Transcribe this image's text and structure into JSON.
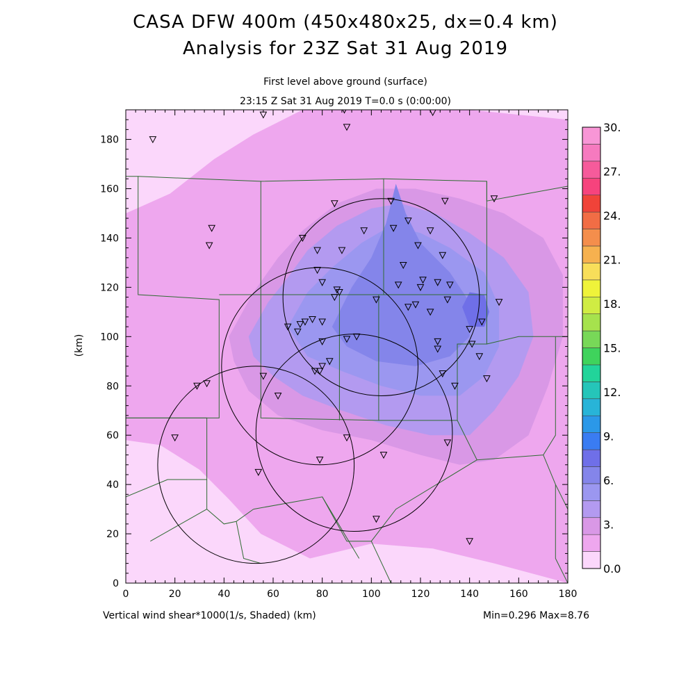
{
  "title_line1": "CASA DFW 400m (450x480x25, dx=0.4 km)",
  "title_line2": "Analysis for 23Z Sat 31 Aug 2019",
  "subtitle_line1": "First level above ground (surface)",
  "subtitle_line2": "23:15 Z Sat 31 Aug 2019   T=0.0 s (0:00:00)",
  "footer_left": "Vertical wind shear*1000(1/s, Shaded)  (km)",
  "footer_right": "Min=0.296 Max=8.76",
  "colorbar": {
    "colors": [
      "#fbd7fb",
      "#eea7ee",
      "#d998e6",
      "#b39af0",
      "#9b97f0",
      "#8485ea",
      "#6f6fe8",
      "#3a7cf2",
      "#2b98e8",
      "#28b4d8",
      "#25c5b9",
      "#22d49a",
      "#3fd35c",
      "#78d858",
      "#a6e24d",
      "#d0ec43",
      "#eff33a",
      "#f8de5a",
      "#f6b14f",
      "#f48e4c",
      "#f16d45",
      "#f04339",
      "#f6437d",
      "#f65b9b",
      "#f67abf",
      "#f896d6"
    ],
    "labels": [
      "0.0",
      "3.",
      "6.",
      "9.",
      "12.",
      "15.",
      "18.",
      "21.",
      "24.",
      "27.",
      "30."
    ]
  },
  "chart_data": {
    "type": "heatmap",
    "field": "Vertical wind shear*1000 (1/s)",
    "xlabel": "(km)",
    "ylabel": "(km)",
    "xlim": [
      0,
      180
    ],
    "ylim": [
      0,
      192
    ],
    "xticks": [
      "0",
      "20",
      "40",
      "60",
      "80",
      "100",
      "120",
      "140",
      "160",
      "180"
    ],
    "yticks": [
      "0",
      "20",
      "40",
      "60",
      "80",
      "100",
      "120",
      "140",
      "160",
      "180"
    ],
    "min": 0.296,
    "max": 8.76,
    "radar_circles": [
      {
        "cx": 104,
        "cy": 116,
        "r": 40
      },
      {
        "cx": 79,
        "cy": 88,
        "r": 40
      },
      {
        "cx": 93,
        "cy": 61,
        "r": 40
      },
      {
        "cx": 53,
        "cy": 48,
        "r": 40
      }
    ],
    "stations": [
      [
        11,
        180
      ],
      [
        56,
        190
      ],
      [
        89,
        192
      ],
      [
        90,
        185
      ],
      [
        125,
        191
      ],
      [
        35,
        144
      ],
      [
        34,
        137
      ],
      [
        85,
        154
      ],
      [
        130,
        155
      ],
      [
        150,
        156
      ],
      [
        72,
        140
      ],
      [
        78,
        135
      ],
      [
        88,
        135
      ],
      [
        97,
        143
      ],
      [
        109,
        144
      ],
      [
        115,
        147
      ],
      [
        124,
        143
      ],
      [
        108,
        155
      ],
      [
        119,
        137
      ],
      [
        129,
        133
      ],
      [
        113,
        129
      ],
      [
        78,
        127
      ],
      [
        80,
        122
      ],
      [
        86,
        119
      ],
      [
        87,
        118
      ],
      [
        85,
        116
      ],
      [
        102,
        115
      ],
      [
        111,
        121
      ],
      [
        120,
        120
      ],
      [
        121,
        123
      ],
      [
        127,
        122
      ],
      [
        132,
        121
      ],
      [
        131,
        115
      ],
      [
        115,
        112
      ],
      [
        118,
        113
      ],
      [
        124,
        110
      ],
      [
        140,
        103
      ],
      [
        141,
        97
      ],
      [
        145,
        106
      ],
      [
        152,
        114
      ],
      [
        66,
        104
      ],
      [
        70,
        102
      ],
      [
        71,
        105
      ],
      [
        73,
        106
      ],
      [
        76,
        107
      ],
      [
        80,
        106
      ],
      [
        80,
        98
      ],
      [
        90,
        99
      ],
      [
        94,
        100
      ],
      [
        127,
        98
      ],
      [
        127,
        95
      ],
      [
        144,
        92
      ],
      [
        147,
        83
      ],
      [
        79,
        86
      ],
      [
        77,
        86
      ],
      [
        80,
        88
      ],
      [
        83,
        90
      ],
      [
        129,
        85
      ],
      [
        134,
        80
      ],
      [
        29,
        80
      ],
      [
        33,
        81
      ],
      [
        56,
        84
      ],
      [
        62,
        76
      ],
      [
        20,
        59
      ],
      [
        90,
        59
      ],
      [
        131,
        57
      ],
      [
        105,
        52
      ],
      [
        79,
        50
      ],
      [
        54,
        45
      ],
      [
        102,
        26
      ],
      [
        140,
        17
      ]
    ],
    "regions": [
      {
        "level": 1,
        "pts": [
          [
            0,
            0
          ],
          [
            180,
            0
          ],
          [
            180,
            192
          ],
          [
            0,
            192
          ]
        ]
      },
      {
        "level": 2,
        "pts": [
          [
            0,
            150
          ],
          [
            18,
            158
          ],
          [
            36,
            172
          ],
          [
            52,
            182
          ],
          [
            72,
            192
          ],
          [
            140,
            192
          ],
          [
            180,
            188
          ],
          [
            180,
            0
          ],
          [
            150,
            8
          ],
          [
            125,
            14
          ],
          [
            100,
            16
          ],
          [
            75,
            10
          ],
          [
            55,
            20
          ],
          [
            42,
            34
          ],
          [
            30,
            46
          ],
          [
            14,
            56
          ],
          [
            0,
            58
          ]
        ]
      },
      {
        "level": 3,
        "pts": [
          [
            42,
            100
          ],
          [
            52,
            118
          ],
          [
            62,
            132
          ],
          [
            72,
            143
          ],
          [
            86,
            154
          ],
          [
            102,
            160
          ],
          [
            118,
            160
          ],
          [
            136,
            156
          ],
          [
            154,
            150
          ],
          [
            170,
            140
          ],
          [
            178,
            125
          ],
          [
            178,
            100
          ],
          [
            172,
            80
          ],
          [
            164,
            60
          ],
          [
            150,
            50
          ],
          [
            136,
            48
          ],
          [
            120,
            52
          ],
          [
            100,
            58
          ],
          [
            80,
            62
          ],
          [
            62,
            68
          ],
          [
            50,
            78
          ],
          [
            44,
            90
          ]
        ]
      },
      {
        "level": 4,
        "pts": [
          [
            50,
            100
          ],
          [
            58,
            114
          ],
          [
            66,
            124
          ],
          [
            74,
            135
          ],
          [
            86,
            145
          ],
          [
            100,
            152
          ],
          [
            112,
            154
          ],
          [
            126,
            150
          ],
          [
            140,
            142
          ],
          [
            154,
            132
          ],
          [
            164,
            118
          ],
          [
            166,
            100
          ],
          [
            160,
            84
          ],
          [
            150,
            70
          ],
          [
            140,
            60
          ],
          [
            124,
            60
          ],
          [
            106,
            64
          ],
          [
            88,
            70
          ],
          [
            72,
            76
          ],
          [
            60,
            84
          ],
          [
            52,
            92
          ]
        ]
      },
      {
        "level": 5,
        "pts": [
          [
            66,
            104
          ],
          [
            74,
            118
          ],
          [
            84,
            128
          ],
          [
            96,
            138
          ],
          [
            108,
            145
          ],
          [
            120,
            142
          ],
          [
            132,
            136
          ],
          [
            146,
            126
          ],
          [
            152,
            112
          ],
          [
            152,
            96
          ],
          [
            146,
            84
          ],
          [
            136,
            76
          ],
          [
            120,
            76
          ],
          [
            104,
            80
          ],
          [
            88,
            86
          ],
          [
            74,
            92
          ]
        ]
      },
      {
        "level": 6,
        "pts": [
          [
            84,
            104
          ],
          [
            92,
            120
          ],
          [
            100,
            132
          ],
          [
            106,
            146
          ],
          [
            110,
            162
          ],
          [
            114,
            150
          ],
          [
            120,
            138
          ],
          [
            132,
            126
          ],
          [
            140,
            114
          ],
          [
            140,
            100
          ],
          [
            132,
            92
          ],
          [
            118,
            88
          ],
          [
            102,
            90
          ],
          [
            90,
            96
          ]
        ]
      },
      {
        "level": 7,
        "pts": [
          [
            140,
            104
          ],
          [
            137,
            112
          ],
          [
            140,
            118
          ],
          [
            146,
            117
          ],
          [
            148,
            110
          ],
          [
            146,
            104
          ]
        ]
      }
    ],
    "county_lines": [
      [
        [
          0,
          165
        ],
        [
          5,
          165
        ],
        [
          5,
          117
        ],
        [
          38,
          115
        ],
        [
          38,
          67
        ],
        [
          0,
          67
        ]
      ],
      [
        [
          5,
          165
        ],
        [
          55,
          163
        ],
        [
          55,
          117
        ]
      ],
      [
        [
          55,
          163
        ],
        [
          105,
          164
        ],
        [
          105,
          117
        ],
        [
          38,
          117
        ]
      ],
      [
        [
          105,
          164
        ],
        [
          147,
          163
        ],
        [
          147,
          117
        ],
        [
          105,
          117
        ]
      ],
      [
        [
          147,
          163
        ],
        [
          147,
          155
        ],
        [
          180,
          161
        ]
      ],
      [
        [
          147,
          117
        ],
        [
          147,
          97
        ],
        [
          160,
          100
        ],
        [
          180,
          100
        ]
      ],
      [
        [
          55,
          117
        ],
        [
          55,
          67
        ],
        [
          103,
          66
        ],
        [
          103,
          117
        ]
      ],
      [
        [
          87,
          117
        ],
        [
          87,
          66
        ]
      ],
      [
        [
          103,
          66
        ],
        [
          135,
          66
        ],
        [
          135,
          97
        ],
        [
          147,
          97
        ]
      ],
      [
        [
          135,
          66
        ],
        [
          143,
          50
        ],
        [
          170,
          52
        ],
        [
          175,
          60
        ],
        [
          175,
          100
        ]
      ],
      [
        [
          0,
          67
        ],
        [
          33,
          67
        ],
        [
          33,
          42
        ],
        [
          17,
          42
        ],
        [
          0,
          35
        ]
      ],
      [
        [
          33,
          42
        ],
        [
          33,
          30
        ],
        [
          10,
          17
        ]
      ],
      [
        [
          33,
          30
        ],
        [
          40,
          24
        ],
        [
          45,
          25
        ],
        [
          52,
          30
        ]
      ],
      [
        [
          52,
          30
        ],
        [
          80,
          35
        ],
        [
          95,
          10
        ]
      ],
      [
        [
          80,
          35
        ],
        [
          90,
          17
        ],
        [
          100,
          17
        ],
        [
          110,
          30
        ],
        [
          143,
          50
        ]
      ],
      [
        [
          100,
          17
        ],
        [
          108,
          0
        ]
      ],
      [
        [
          45,
          25
        ],
        [
          48,
          10
        ],
        [
          55,
          8
        ]
      ],
      [
        [
          170,
          52
        ],
        [
          175,
          40
        ],
        [
          180,
          30
        ]
      ],
      [
        [
          175,
          40
        ],
        [
          175,
          10
        ],
        [
          180,
          0
        ]
      ]
    ]
  }
}
